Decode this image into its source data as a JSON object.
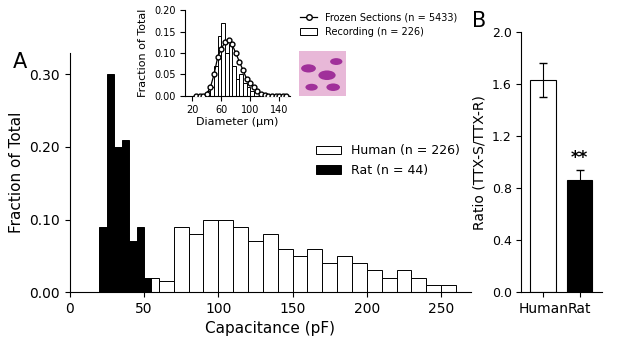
{
  "chart_data": [
    {
      "type": "histogram",
      "title": "A",
      "x_label": "Capacitance (pF)",
      "y_label": "Fraction of Total",
      "xlim": [
        0,
        270
      ],
      "xticks": [
        0,
        50,
        100,
        150,
        200,
        250
      ],
      "ylim": [
        0,
        0.33
      ],
      "yticks": [
        {
          "value": 0,
          "label": "0.00"
        },
        {
          "value": 0.1,
          "label": "0.10"
        },
        {
          "value": 0.2,
          "label": "0.20"
        },
        {
          "value": 0.3,
          "label": "0.30"
        }
      ],
      "legend": "center right",
      "series": [
        {
          "name": "Human (n = 226)",
          "color": "#ffffff",
          "bins": [
            30,
            40,
            50,
            60,
            70,
            80,
            90,
            100,
            110,
            120,
            130,
            140,
            150,
            160,
            170,
            180,
            190,
            200,
            210,
            220,
            230,
            240,
            250,
            260
          ],
          "values": [
            0.01,
            0.02,
            0.02,
            0.015,
            0.09,
            0.08,
            0.1,
            0.1,
            0.09,
            0.07,
            0.08,
            0.06,
            0.05,
            0.06,
            0.04,
            0.05,
            0.04,
            0.03,
            0.02,
            0.03,
            0.02,
            0.01,
            0.01
          ]
        },
        {
          "name": "Rat (n = 44)",
          "color": "#000000",
          "bins": [
            20,
            25,
            30,
            35,
            40,
            45,
            50,
            55
          ],
          "values": [
            0.09,
            0.3,
            0.2,
            0.21,
            0.07,
            0.09,
            0.02
          ]
        }
      ]
    },
    {
      "type": "histogram",
      "x_label": "Diameter (µm)",
      "y_label": "Fraction of Total",
      "xlim": [
        10,
        155
      ],
      "xticks": [
        20,
        60,
        100,
        140
      ],
      "ylim": [
        0,
        0.2
      ],
      "yticks": [
        {
          "value": 0,
          "label": "0.00"
        },
        {
          "value": 0.05,
          "label": "0.05"
        },
        {
          "value": 0.1,
          "label": "0.10"
        },
        {
          "value": 0.15,
          "label": "0.15"
        },
        {
          "value": 0.2,
          "label": "0.20"
        }
      ],
      "legend": "upper left",
      "series": [
        {
          "name": "Frozen Sections (n = 5433)",
          "type": "line",
          "marker": "o",
          "color": "#000000",
          "x": [
            25,
            30,
            35,
            40,
            45,
            50,
            55,
            60,
            65,
            70,
            75,
            80,
            85,
            90,
            95,
            100,
            105,
            110,
            115,
            120,
            125,
            130,
            135,
            140,
            145,
            150
          ],
          "values": [
            0,
            0,
            0,
            0.005,
            0.02,
            0.05,
            0.09,
            0.11,
            0.125,
            0.13,
            0.12,
            0.1,
            0.08,
            0.06,
            0.04,
            0.03,
            0.02,
            0.01,
            0.005,
            0.002,
            0,
            0,
            0,
            0,
            0,
            0
          ]
        },
        {
          "name": "Recording (n = 226)",
          "type": "bar",
          "color": "#ffffff",
          "bins": [
            40,
            45,
            50,
            55,
            60,
            65,
            70,
            75,
            80,
            85,
            90,
            95,
            100,
            105
          ],
          "values": [
            0.01,
            0.02,
            0.07,
            0.14,
            0.17,
            0.1,
            0.12,
            0.07,
            0.04,
            0.05,
            0.03,
            0.02,
            0.01
          ]
        }
      ]
    },
    {
      "type": "bar",
      "title": "B",
      "y_label": "Ratio (TTX-S/TTX-R)",
      "categories": [
        "Human",
        "Rat"
      ],
      "values": [
        1.63,
        0.86
      ],
      "errors": [
        0.13,
        0.08
      ],
      "colors": [
        "#ffffff",
        "#000000"
      ],
      "ylim": [
        0,
        2.0
      ],
      "yticks": [
        {
          "value": 0,
          "label": "0.0"
        },
        {
          "value": 0.4,
          "label": "0.4"
        },
        {
          "value": 0.8,
          "label": "0.8"
        },
        {
          "value": 1.2,
          "label": "1.2"
        },
        {
          "value": 1.6,
          "label": "1.6"
        },
        {
          "value": 2.0,
          "label": "2.0"
        }
      ],
      "annotations": [
        {
          "text": "**",
          "x": "Rat"
        }
      ]
    }
  ]
}
